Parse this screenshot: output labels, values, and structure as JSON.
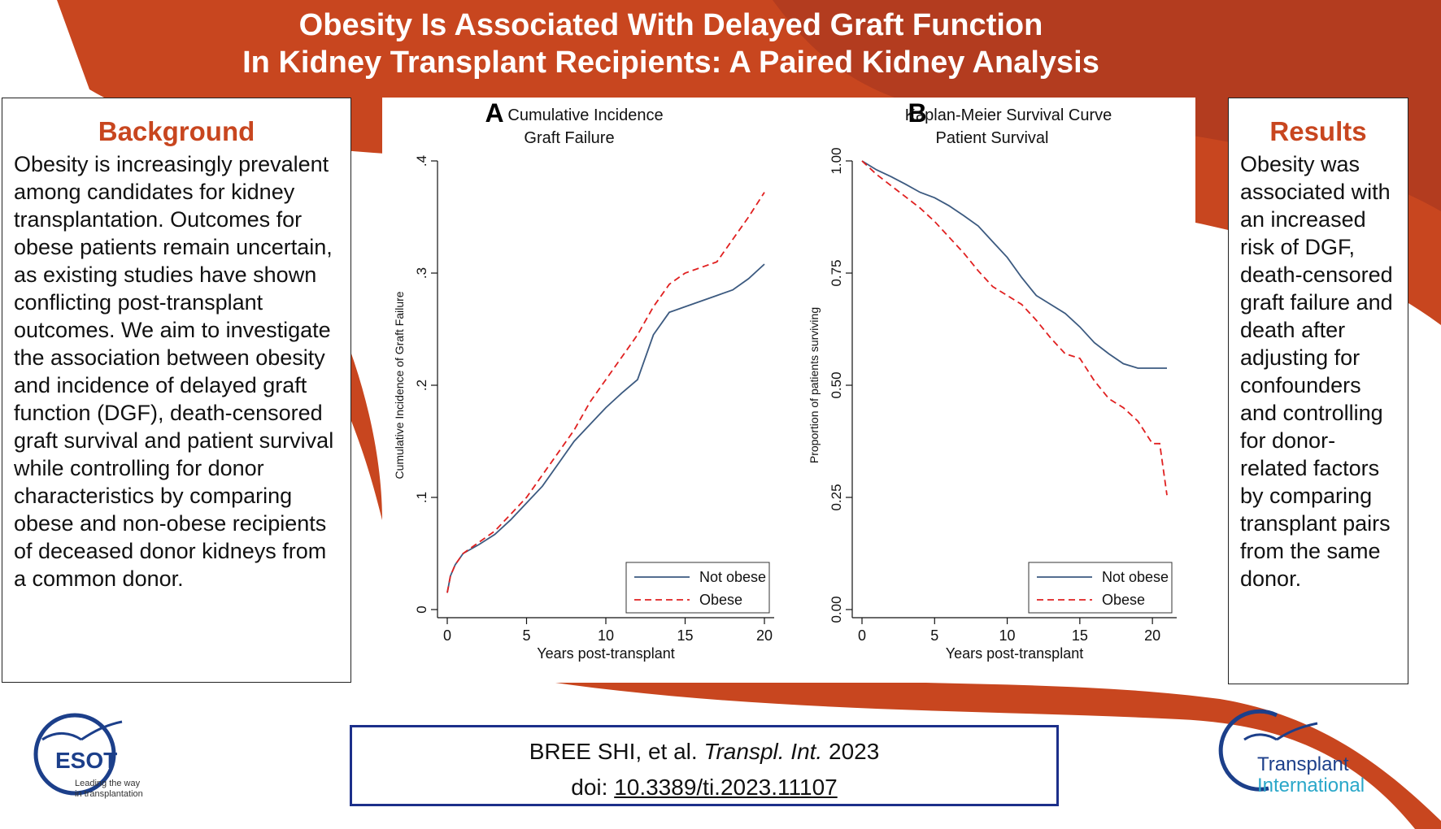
{
  "header": {
    "title_line1": "Obesity Is Associated With Delayed Graft Function",
    "title_line2": "In Kidney Transplant Recipients: A Paired Kidney Analysis"
  },
  "background": {
    "heading": "Background",
    "text": "Obesity is increasingly prevalent among candidates for kidney transplantation. Outcomes for obese patients remain uncertain, as existing studies have shown conflicting post-transplant outcomes. We aim to investigate the association between obesity and incidence of delayed graft function (DGF), death-censored graft survival and patient survival while controlling for donor characteristics by comparing obese and non-obese recipients of deceased donor kidneys from a common donor."
  },
  "results": {
    "heading": "Results",
    "text": "Obesity was associated with an increased risk of DGF, death-censored graft failure and death after adjusting for confounders and controlling for donor-related factors by comparing transplant pairs from the same donor."
  },
  "citation": {
    "authors": "BREE SHI, et al.",
    "journal": "Transpl. Int.",
    "year": "2023",
    "doi_prefix": "doi:",
    "doi": "10.3389/ti.2023.11107"
  },
  "logos": {
    "esot_name": "ESOT",
    "esot_tagline_1": "Leading the way",
    "esot_tagline_2": "in transplantation",
    "ti_line1": "Transplant",
    "ti_line2": "International"
  },
  "colors": {
    "accent": "#c8461f",
    "not_obese": "#3c5a80",
    "obese": "#e02020",
    "citation_border": "#1c2f8a"
  },
  "chart_data": [
    {
      "type": "line",
      "panel_letter": "A",
      "title": "Cumulative Incidence",
      "subtitle": "Graft Failure",
      "xlabel": "Years post-transplant",
      "ylabel": "Cumulative Incidence of Graft Failure",
      "xlim": [
        0,
        20
      ],
      "ylim": [
        0,
        0.4
      ],
      "xticks": [
        0,
        5,
        10,
        15,
        20
      ],
      "xtick_labels": [
        "0",
        "5",
        "10",
        "15",
        "20"
      ],
      "yticks": [
        0,
        0.1,
        0.2,
        0.3,
        0.4
      ],
      "ytick_labels": [
        "0",
        ".1",
        ".2",
        ".3",
        ".4"
      ],
      "grid": false,
      "legend_position": "bottom-right",
      "series": [
        {
          "name": "Not obese",
          "style": "solid",
          "x": [
            0,
            0.2,
            0.5,
            1,
            2,
            3,
            4,
            5,
            6,
            7,
            8,
            9,
            10,
            11,
            12,
            13,
            14,
            15,
            16,
            17,
            18,
            19,
            20
          ],
          "y": [
            0.015,
            0.03,
            0.04,
            0.05,
            0.058,
            0.067,
            0.08,
            0.095,
            0.11,
            0.13,
            0.15,
            0.165,
            0.18,
            0.193,
            0.205,
            0.245,
            0.265,
            0.27,
            0.275,
            0.28,
            0.285,
            0.295,
            0.308
          ]
        },
        {
          "name": "Obese",
          "style": "dashed",
          "x": [
            0,
            0.2,
            0.5,
            1,
            2,
            3,
            4,
            5,
            6,
            7,
            8,
            9,
            10,
            11,
            12,
            13,
            14,
            15,
            16,
            17,
            18,
            19,
            20
          ],
          "y": [
            0.015,
            0.03,
            0.04,
            0.05,
            0.06,
            0.07,
            0.085,
            0.1,
            0.12,
            0.14,
            0.16,
            0.185,
            0.205,
            0.225,
            0.245,
            0.27,
            0.29,
            0.3,
            0.305,
            0.31,
            0.33,
            0.35,
            0.372
          ]
        }
      ]
    },
    {
      "type": "line",
      "panel_letter": "B",
      "title": "Kaplan-Meier Survival Curve",
      "subtitle": "Patient Survival",
      "xlabel": "Years post-transplant",
      "ylabel": "Proportion of patients surviving",
      "xlim": [
        0,
        21
      ],
      "ylim": [
        0,
        1
      ],
      "xticks": [
        0,
        5,
        10,
        15,
        20
      ],
      "xtick_labels": [
        "0",
        "5",
        "10",
        "15",
        "20"
      ],
      "yticks": [
        0,
        0.25,
        0.5,
        0.75,
        1
      ],
      "ytick_labels": [
        "0.00",
        "0.25",
        "0.50",
        "0.75",
        "1.00"
      ],
      "grid": false,
      "legend_position": "bottom-right",
      "series": [
        {
          "name": "Not obese",
          "style": "solid",
          "x": [
            0,
            1,
            2,
            3,
            4,
            5,
            6,
            7,
            8,
            9,
            10,
            11,
            12,
            13,
            14,
            15,
            16,
            17,
            18,
            19,
            20,
            21
          ],
          "y": [
            1.0,
            0.98,
            0.965,
            0.948,
            0.93,
            0.918,
            0.9,
            0.878,
            0.855,
            0.82,
            0.785,
            0.74,
            0.7,
            0.68,
            0.66,
            0.63,
            0.595,
            0.57,
            0.548,
            0.538,
            0.538,
            0.538
          ]
        },
        {
          "name": "Obese",
          "style": "dashed",
          "x": [
            0,
            1,
            2,
            3,
            4,
            5,
            6,
            7,
            8,
            9,
            10,
            11,
            12,
            13,
            14,
            15,
            16,
            17,
            18,
            19,
            20,
            20.5,
            21
          ],
          "y": [
            1.0,
            0.97,
            0.945,
            0.92,
            0.895,
            0.865,
            0.83,
            0.795,
            0.755,
            0.72,
            0.7,
            0.68,
            0.645,
            0.605,
            0.57,
            0.56,
            0.51,
            0.47,
            0.45,
            0.42,
            0.37,
            0.37,
            0.255
          ]
        }
      ]
    }
  ]
}
